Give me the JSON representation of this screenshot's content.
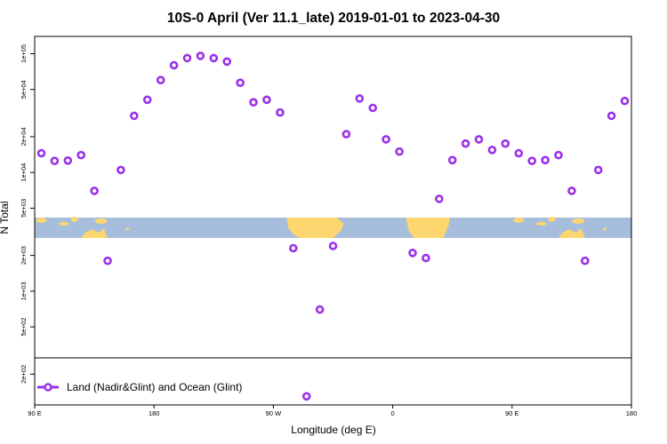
{
  "chart_data": {
    "type": "scatter",
    "title": "10S-0 April (Ver 11.1_late)   2019-01-01 to 2023-04-30",
    "xlabel": "Longitude (deg E)",
    "ylabel": "N Total",
    "y_scale": "log",
    "ylim": [
      110,
      140000
    ],
    "grid": false,
    "x_ticks": [
      "90 E",
      "180",
      "90 W",
      "0",
      "90 E",
      "180"
    ],
    "y_ticks": [
      {
        "value": 100000,
        "label": "1e+05"
      },
      {
        "value": 50000,
        "label": "5e+04"
      },
      {
        "value": 20000,
        "label": "2e+04"
      },
      {
        "value": 10000,
        "label": "1e+04"
      },
      {
        "value": 5000,
        "label": "5e+03"
      },
      {
        "value": 2000,
        "label": "2e+03"
      },
      {
        "value": 1000,
        "label": "1e+03"
      },
      {
        "value": 500,
        "label": "5e+02"
      },
      {
        "value": 200,
        "label": "2e+02"
      }
    ],
    "legend": {
      "placement": "bottom-left"
    },
    "map_strip": {
      "ocean_color": "#a6bddb",
      "land_color": "#fdd66f"
    },
    "series": [
      {
        "name": "Land (Nadir&Glint) and Ocean (Glint)",
        "color": "#9b30e8",
        "marker": "open-circle",
        "x": [
          95,
          105,
          115,
          125,
          135,
          145,
          155,
          165,
          175,
          185,
          195,
          205,
          215,
          225,
          235,
          245,
          255,
          265,
          275,
          285,
          295,
          305,
          315,
          325,
          335,
          345,
          355,
          365,
          375,
          385,
          395,
          405,
          415,
          425,
          435,
          445,
          455,
          465,
          475,
          485,
          495,
          505,
          515,
          525,
          535
        ],
        "y": [
          14500,
          12500,
          12600,
          14000,
          7000,
          1800,
          10500,
          30000,
          41000,
          60000,
          80000,
          92000,
          96000,
          92000,
          86000,
          57000,
          39000,
          41000,
          32000,
          2300,
          130,
          700,
          2400,
          21000,
          42000,
          35000,
          19000,
          15000,
          2100,
          1900,
          6000,
          12700,
          17500,
          19000,
          15500,
          17500,
          14500,
          12500,
          12700,
          14000,
          7000,
          1800,
          10500,
          30000,
          40000
        ]
      }
    ]
  }
}
